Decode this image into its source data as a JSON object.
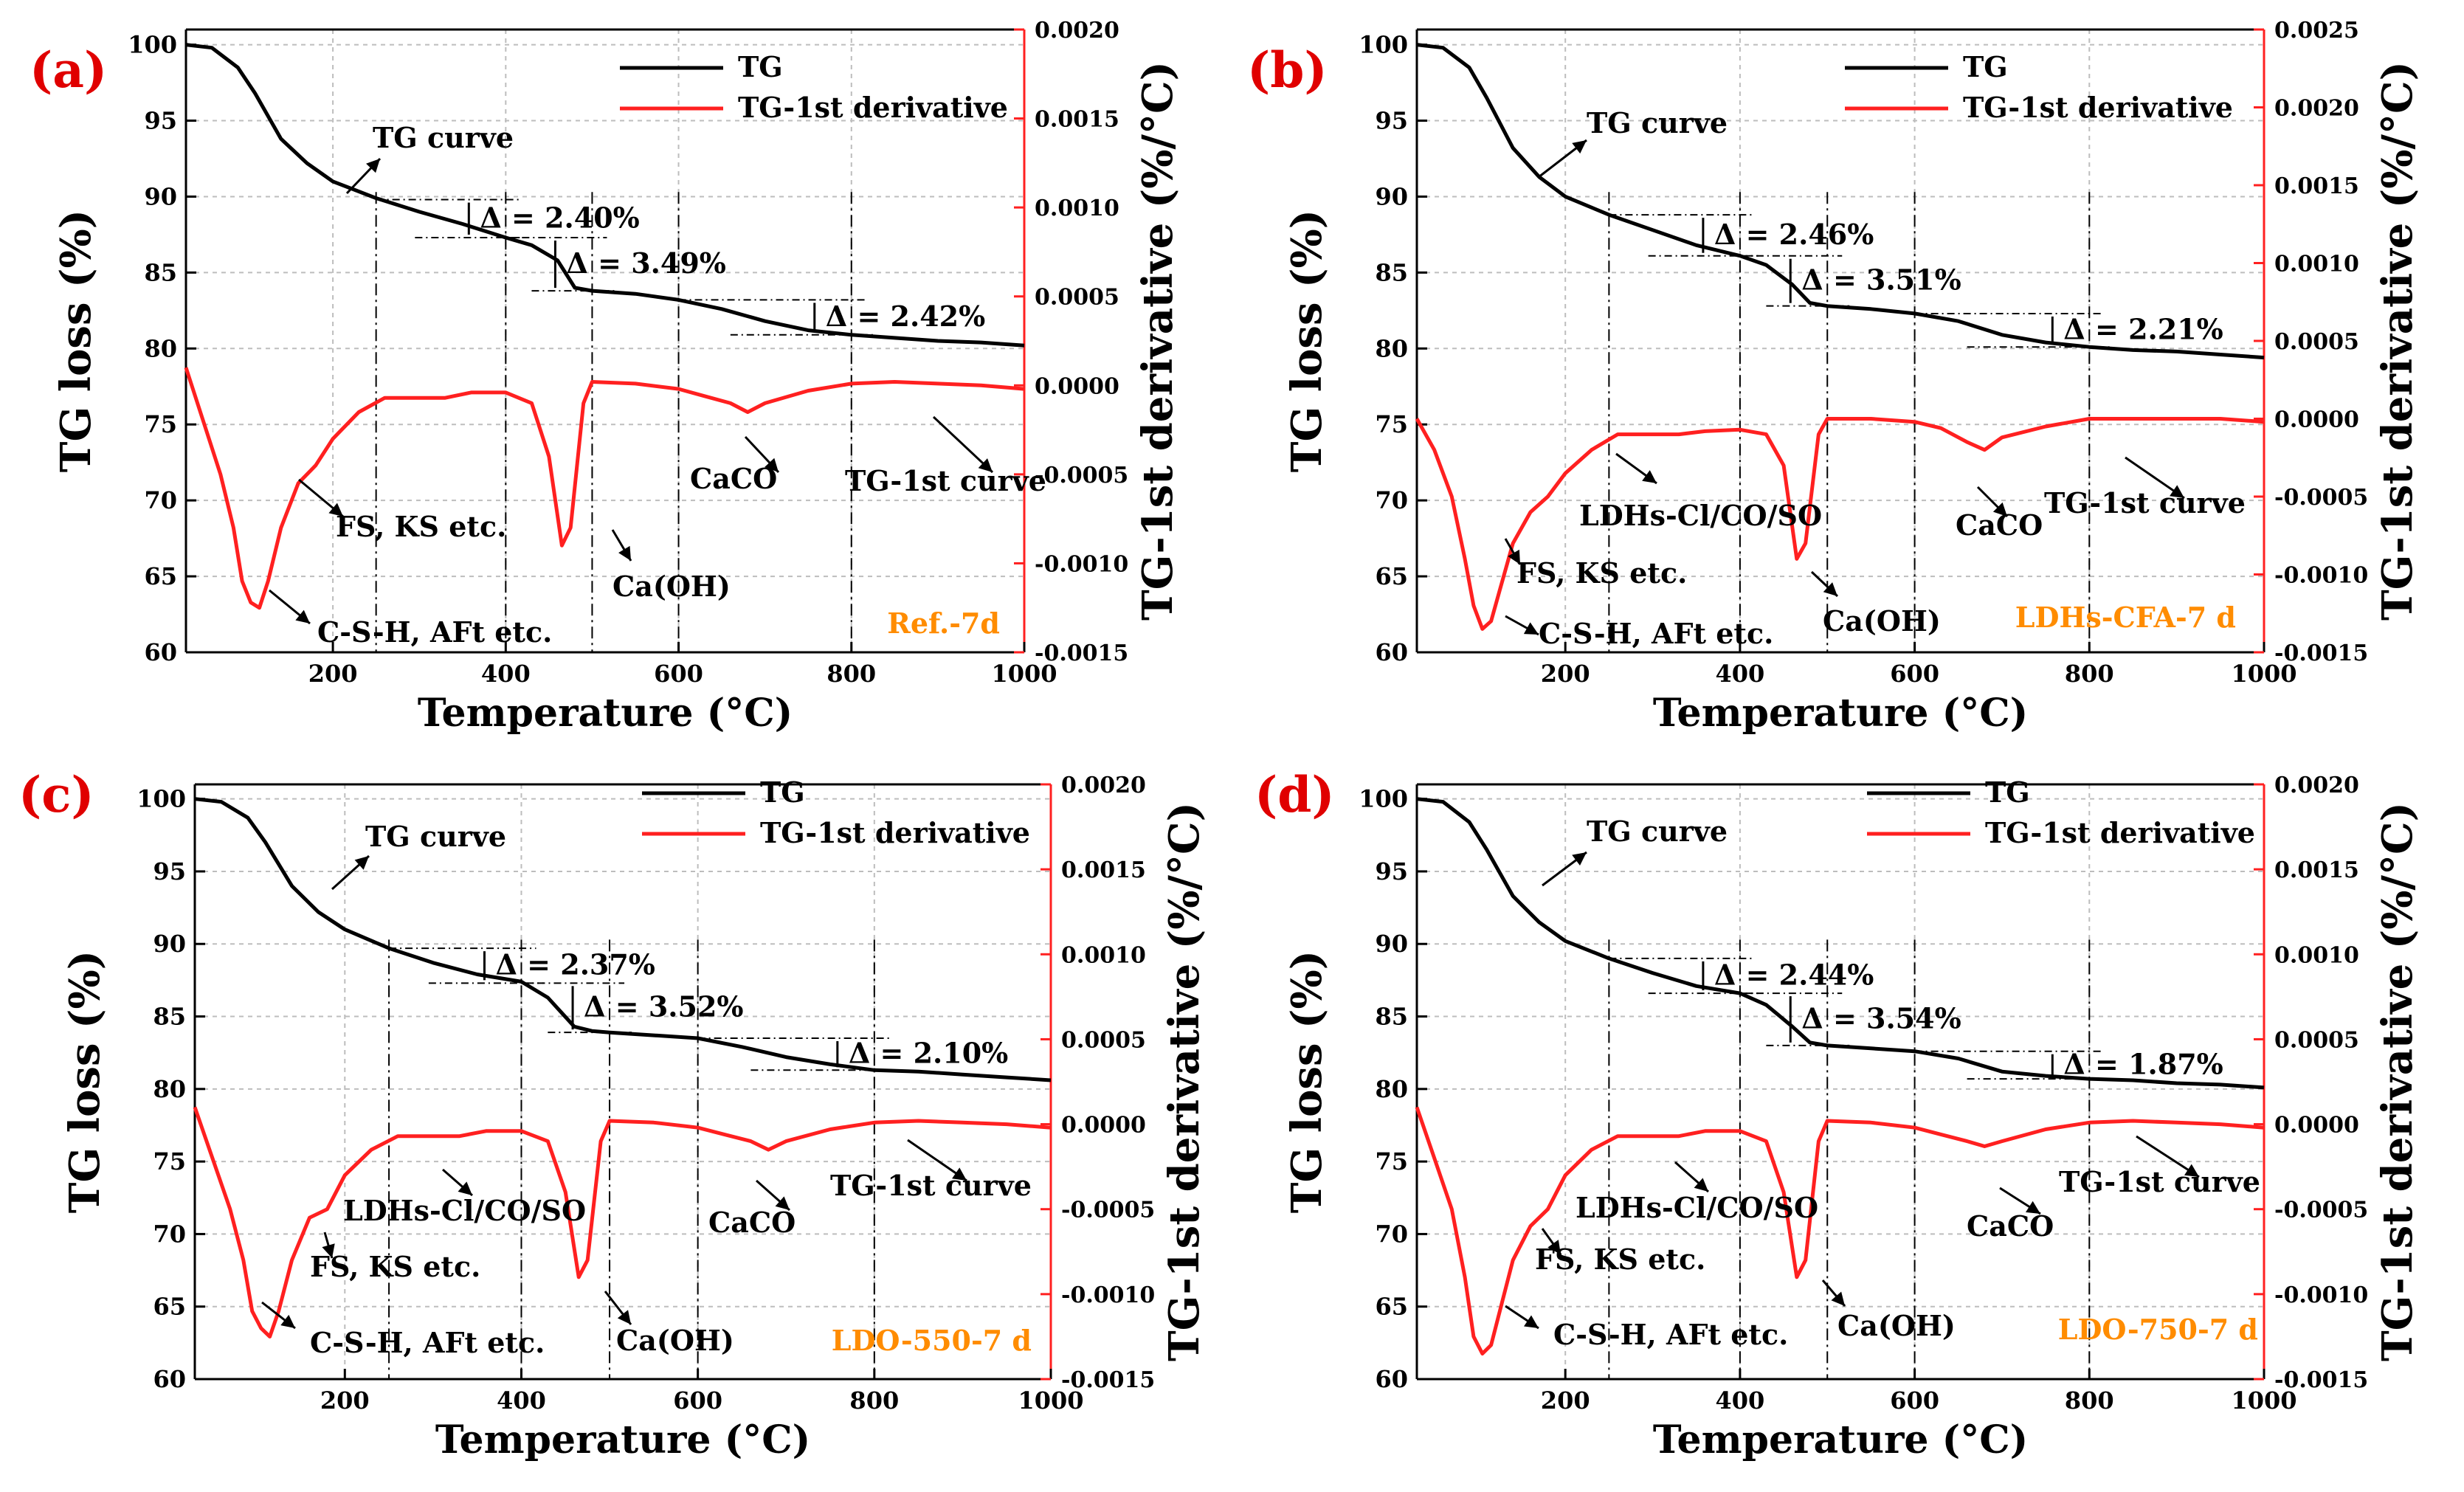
{
  "figure": {
    "legend_tg": "TG",
    "legend_deriv": "TG-1st derivative",
    "xlabel": "Temperature (°C)",
    "ylabel_left": "TG loss (%)",
    "ylabel_right": "TG-1st derivative (%/°C)",
    "colors": {
      "tg": "#000000",
      "deriv": "#ff2020",
      "sample_label": "#ff8c00",
      "panel_letter": "#e00000"
    }
  },
  "chart_data": [
    {
      "type": "line",
      "panel": "(a)",
      "sample": "Ref.-7d",
      "xlim": [
        30,
        1000
      ],
      "ylim": [
        60,
        101
      ],
      "y2lim": [
        -0.0015,
        0.002
      ],
      "x_ticks": [
        "200",
        "400",
        "600",
        "800",
        "1000"
      ],
      "y_ticks": [
        "60",
        "65",
        "70",
        "75",
        "80",
        "85",
        "90",
        "95",
        "100"
      ],
      "y2_ticks": [
        "-0.0015",
        "-0.0010",
        "-0.0005",
        "0.0000",
        "0.0005",
        "0.0010",
        "0.0015",
        "0.0020"
      ],
      "tg": {
        "x": [
          30,
          60,
          90,
          110,
          140,
          170,
          200,
          250,
          300,
          350,
          400,
          430,
          460,
          480,
          500,
          550,
          600,
          650,
          700,
          750,
          800,
          850,
          900,
          950,
          1000
        ],
        "y": [
          100,
          99.8,
          98.5,
          96.8,
          93.8,
          92.2,
          91.0,
          89.9,
          89.0,
          88.2,
          87.3,
          86.8,
          85.8,
          84.0,
          83.8,
          83.6,
          83.2,
          82.6,
          81.8,
          81.2,
          80.9,
          80.7,
          80.5,
          80.4,
          80.2
        ]
      },
      "deriv": {
        "x": [
          30,
          50,
          70,
          85,
          95,
          105,
          115,
          125,
          140,
          160,
          180,
          200,
          230,
          260,
          300,
          330,
          360,
          400,
          430,
          450,
          465,
          475,
          490,
          500,
          550,
          600,
          630,
          660,
          680,
          700,
          750,
          800,
          850,
          900,
          950,
          1000
        ],
        "y": [
          0.0001,
          -0.0002,
          -0.0005,
          -0.0008,
          -0.0011,
          -0.00122,
          -0.00125,
          -0.0011,
          -0.0008,
          -0.00055,
          -0.00045,
          -0.0003,
          -0.00015,
          -7e-05,
          -7e-05,
          -7e-05,
          -4e-05,
          -4e-05,
          -0.0001,
          -0.0004,
          -0.0009,
          -0.0008,
          -0.0001,
          2e-05,
          1e-05,
          -2e-05,
          -6e-05,
          -0.0001,
          -0.00015,
          -0.0001,
          -3e-05,
          1e-05,
          2e-05,
          1e-05,
          0.0,
          -2e-05
        ]
      },
      "steps": [
        {
          "label": "Δ = 2.40%",
          "x1": 250,
          "x2": 400,
          "y1": 89.8,
          "y2": 87.3
        },
        {
          "label": "Δ = 3.49%",
          "x1": 400,
          "x2": 500,
          "y1": 87.3,
          "y2": 83.8
        },
        {
          "label": "Δ = 2.42%",
          "x1": 600,
          "x2": 800,
          "y1": 83.2,
          "y2": 80.9
        }
      ],
      "vlines": [
        250,
        400,
        500,
        600,
        800
      ],
      "annotations": {
        "tg_curve": "TG curve",
        "deriv_curve": "TG-1st curve",
        "csh": "C-S-H, AFt etc.",
        "fs": "FS, KS etc.",
        "caoh": "Ca(OH)",
        "caco": "CaCO",
        "ldh": ""
      }
    },
    {
      "type": "line",
      "panel": "(b)",
      "sample": "LDHs-CFA-7 d",
      "xlim": [
        30,
        1000
      ],
      "ylim": [
        60,
        101
      ],
      "y2lim": [
        -0.0015,
        0.0025
      ],
      "x_ticks": [
        "200",
        "400",
        "600",
        "800",
        "1000"
      ],
      "y_ticks": [
        "60",
        "65",
        "70",
        "75",
        "80",
        "85",
        "90",
        "95",
        "100"
      ],
      "y2_ticks": [
        "-0.0015",
        "-0.0010",
        "-0.0005",
        "0.0000",
        "0.0005",
        "0.0010",
        "0.0015",
        "0.0020",
        "0.0025"
      ],
      "tg": {
        "x": [
          30,
          60,
          90,
          110,
          140,
          170,
          200,
          250,
          300,
          350,
          400,
          430,
          460,
          480,
          500,
          550,
          600,
          650,
          700,
          750,
          800,
          850,
          900,
          950,
          1000
        ],
        "y": [
          100,
          99.8,
          98.5,
          96.5,
          93.2,
          91.3,
          90.0,
          88.8,
          87.8,
          86.8,
          86.1,
          85.5,
          84.2,
          83.0,
          82.8,
          82.6,
          82.3,
          81.8,
          80.9,
          80.4,
          80.1,
          79.9,
          79.8,
          79.6,
          79.4
        ]
      },
      "deriv": {
        "x": [
          30,
          50,
          70,
          85,
          95,
          105,
          115,
          125,
          140,
          160,
          180,
          200,
          230,
          260,
          300,
          330,
          360,
          400,
          430,
          450,
          465,
          475,
          490,
          500,
          550,
          600,
          630,
          660,
          680,
          700,
          750,
          800,
          850,
          900,
          950,
          1000
        ],
        "y": [
          0.0,
          -0.0002,
          -0.0005,
          -0.0009,
          -0.0012,
          -0.00135,
          -0.0013,
          -0.0011,
          -0.0008,
          -0.0006,
          -0.0005,
          -0.00035,
          -0.0002,
          -0.0001,
          -0.0001,
          -0.0001,
          -8e-05,
          -7e-05,
          -0.0001,
          -0.0003,
          -0.0009,
          -0.0008,
          -0.0001,
          0.0,
          0.0,
          -2e-05,
          -6e-05,
          -0.00015,
          -0.0002,
          -0.00012,
          -5e-05,
          0.0,
          0.0,
          0.0,
          0.0,
          -2e-05
        ]
      },
      "steps": [
        {
          "label": "Δ = 2.46%",
          "x1": 250,
          "x2": 400,
          "y1": 88.8,
          "y2": 86.1
        },
        {
          "label": "Δ = 3.51%",
          "x1": 400,
          "x2": 500,
          "y1": 86.1,
          "y2": 82.8
        },
        {
          "label": "Δ = 2.21%",
          "x1": 600,
          "x2": 800,
          "y1": 82.3,
          "y2": 80.1
        }
      ],
      "vlines": [
        250,
        400,
        500,
        600,
        800
      ],
      "annotations": {
        "tg_curve": "TG curve",
        "deriv_curve": "TG-1st curve",
        "csh": "C-S-H, AFt etc.",
        "fs": "FS, KS etc.",
        "caoh": "Ca(OH)",
        "caco": "CaCO",
        "ldh": "LDHs-Cl/CO/SO"
      }
    },
    {
      "type": "line",
      "panel": "(c)",
      "sample": "LDO-550-7 d",
      "xlim": [
        30,
        1000
      ],
      "ylim": [
        60,
        101
      ],
      "y2lim": [
        -0.0015,
        0.002
      ],
      "x_ticks": [
        "200",
        "400",
        "600",
        "800",
        "1000"
      ],
      "y_ticks": [
        "60",
        "65",
        "70",
        "75",
        "80",
        "85",
        "90",
        "95",
        "100"
      ],
      "y2_ticks": [
        "-0.0015",
        "-0.0010",
        "-0.0005",
        "0.0000",
        "0.0005",
        "0.0010",
        "0.0015",
        "0.0020"
      ],
      "tg": {
        "x": [
          30,
          60,
          90,
          110,
          140,
          170,
          200,
          250,
          300,
          350,
          400,
          430,
          460,
          480,
          500,
          550,
          600,
          650,
          700,
          750,
          800,
          850,
          900,
          950,
          1000
        ],
        "y": [
          100,
          99.8,
          98.7,
          97.0,
          94.0,
          92.2,
          91.0,
          89.7,
          88.7,
          87.9,
          87.4,
          86.3,
          84.3,
          84.0,
          83.9,
          83.7,
          83.5,
          82.9,
          82.2,
          81.7,
          81.3,
          81.2,
          81.0,
          80.8,
          80.6
        ]
      },
      "deriv": {
        "x": [
          30,
          50,
          70,
          85,
          95,
          105,
          115,
          125,
          140,
          160,
          180,
          200,
          230,
          260,
          300,
          330,
          360,
          400,
          430,
          450,
          465,
          475,
          490,
          500,
          550,
          600,
          630,
          660,
          680,
          700,
          750,
          800,
          850,
          900,
          950,
          1000
        ],
        "y": [
          0.0001,
          -0.0002,
          -0.0005,
          -0.0008,
          -0.0011,
          -0.0012,
          -0.00125,
          -0.0011,
          -0.0008,
          -0.00055,
          -0.0005,
          -0.0003,
          -0.00015,
          -7e-05,
          -7e-05,
          -7e-05,
          -4e-05,
          -4e-05,
          -0.0001,
          -0.0004,
          -0.0009,
          -0.0008,
          -0.0001,
          2e-05,
          1e-05,
          -2e-05,
          -6e-05,
          -0.0001,
          -0.00015,
          -0.0001,
          -3e-05,
          1e-05,
          2e-05,
          1e-05,
          0.0,
          -2e-05
        ]
      },
      "steps": [
        {
          "label": "Δ = 2.37%",
          "x1": 250,
          "x2": 400,
          "y1": 89.7,
          "y2": 87.3
        },
        {
          "label": "Δ = 3.52%",
          "x1": 400,
          "x2": 500,
          "y1": 87.3,
          "y2": 83.9
        },
        {
          "label": "Δ = 2.10%",
          "x1": 600,
          "x2": 800,
          "y1": 83.5,
          "y2": 81.3
        }
      ],
      "vlines": [
        250,
        400,
        500,
        600,
        800
      ],
      "annotations": {
        "tg_curve": "TG curve",
        "deriv_curve": "TG-1st curve",
        "csh": "C-S-H, AFt etc.",
        "fs": "FS, KS etc.",
        "caoh": "Ca(OH)",
        "caco": "CaCO",
        "ldh": "LDHs-Cl/CO/SO"
      }
    },
    {
      "type": "line",
      "panel": "(d)",
      "sample": "LDO-750-7 d",
      "xlim": [
        30,
        1000
      ],
      "ylim": [
        60,
        101
      ],
      "y2lim": [
        -0.0015,
        0.002
      ],
      "x_ticks": [
        "200",
        "400",
        "600",
        "800",
        "1000"
      ],
      "y_ticks": [
        "60",
        "65",
        "70",
        "75",
        "80",
        "85",
        "90",
        "95",
        "100"
      ],
      "y2_ticks": [
        "-0.0015",
        "-0.0010",
        "-0.0005",
        "0.0000",
        "0.0005",
        "0.0010",
        "0.0015",
        "0.0020"
      ],
      "tg": {
        "x": [
          30,
          60,
          90,
          110,
          140,
          170,
          200,
          250,
          300,
          350,
          400,
          430,
          460,
          480,
          500,
          550,
          600,
          650,
          700,
          750,
          800,
          850,
          900,
          950,
          1000
        ],
        "y": [
          100,
          99.8,
          98.4,
          96.5,
          93.3,
          91.5,
          90.2,
          89.0,
          88.0,
          87.1,
          86.6,
          85.8,
          84.3,
          83.2,
          83.0,
          82.8,
          82.6,
          82.1,
          81.2,
          80.9,
          80.7,
          80.6,
          80.4,
          80.3,
          80.1
        ]
      },
      "deriv": {
        "x": [
          30,
          50,
          70,
          85,
          95,
          105,
          115,
          125,
          140,
          160,
          180,
          200,
          230,
          260,
          300,
          330,
          360,
          400,
          430,
          450,
          465,
          475,
          490,
          500,
          550,
          600,
          630,
          660,
          680,
          700,
          750,
          800,
          850,
          900,
          950,
          1000
        ],
        "y": [
          0.0001,
          -0.0002,
          -0.0005,
          -0.0009,
          -0.00125,
          -0.00135,
          -0.0013,
          -0.0011,
          -0.0008,
          -0.0006,
          -0.0005,
          -0.0003,
          -0.00015,
          -7e-05,
          -7e-05,
          -7e-05,
          -4e-05,
          -4e-05,
          -0.0001,
          -0.0004,
          -0.0009,
          -0.0008,
          -0.0001,
          2e-05,
          1e-05,
          -2e-05,
          -6e-05,
          -0.0001,
          -0.00013,
          -0.0001,
          -3e-05,
          1e-05,
          2e-05,
          1e-05,
          0.0,
          -2e-05
        ]
      },
      "steps": [
        {
          "label": "Δ = 2.44%",
          "x1": 250,
          "x2": 400,
          "y1": 89.0,
          "y2": 86.6
        },
        {
          "label": "Δ = 3.54%",
          "x1": 400,
          "x2": 500,
          "y1": 86.6,
          "y2": 83.0
        },
        {
          "label": "Δ = 1.87%",
          "x1": 600,
          "x2": 800,
          "y1": 82.6,
          "y2": 80.7
        }
      ],
      "vlines": [
        250,
        400,
        500,
        600,
        800
      ],
      "annotations": {
        "tg_curve": "TG curve",
        "deriv_curve": "TG-1st curve",
        "csh": "C-S-H, AFt etc.",
        "fs": "FS, KS etc.",
        "caoh": "Ca(OH)",
        "caco": "CaCO",
        "ldh": "LDHs-Cl/CO/SO"
      }
    }
  ]
}
